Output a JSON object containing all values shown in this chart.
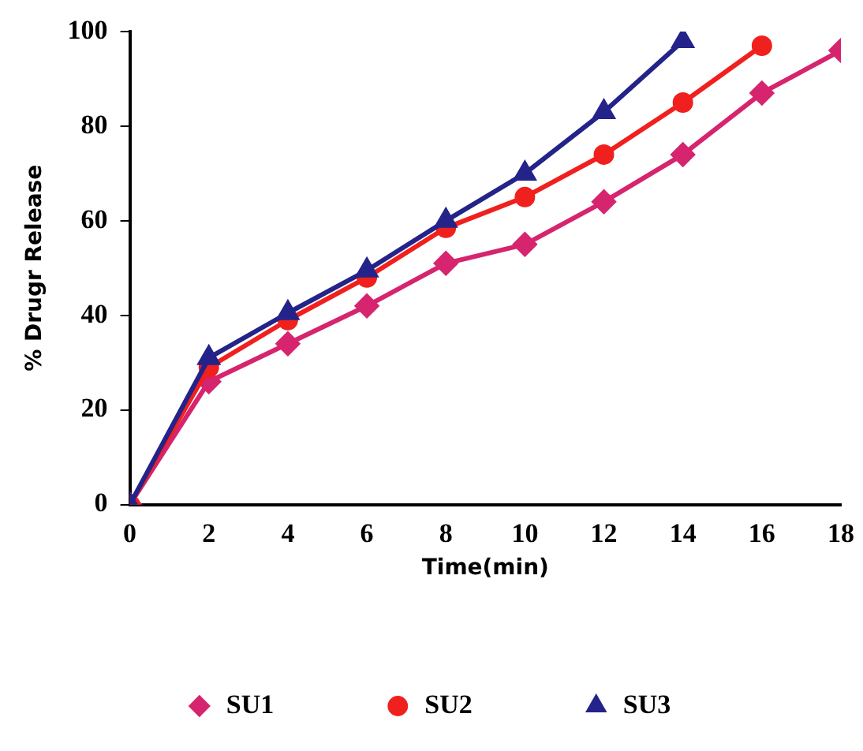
{
  "chart_data": {
    "type": "line",
    "xlabel": "Time(min)",
    "ylabel": "% Drugr Release",
    "x": [
      0,
      2,
      4,
      6,
      8,
      10,
      12,
      14,
      16,
      18
    ],
    "xlim": [
      0,
      18
    ],
    "xticks": [
      0,
      2,
      4,
      6,
      8,
      10,
      12,
      14,
      16,
      18
    ],
    "ylim": [
      0,
      100
    ],
    "yticks": [
      0,
      20,
      40,
      60,
      80,
      100
    ],
    "grid": false,
    "legend": "bottom",
    "series": [
      {
        "name": "SU1",
        "color": "#d6246e",
        "marker": "diamond",
        "values": [
          0,
          26,
          34,
          42,
          51,
          55,
          64,
          74,
          87,
          96
        ]
      },
      {
        "name": "SU2",
        "color": "#f0201e",
        "marker": "circle",
        "values": [
          0,
          29,
          39,
          48,
          58.5,
          65,
          74,
          85,
          97,
          null
        ]
      },
      {
        "name": "SU3",
        "color": "#23238a",
        "marker": "triangle",
        "values": [
          0,
          31,
          40.5,
          49.5,
          60,
          70,
          83,
          98,
          null,
          null
        ]
      }
    ]
  }
}
